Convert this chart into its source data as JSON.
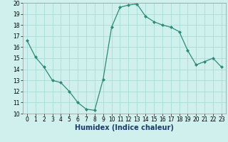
{
  "x": [
    0,
    1,
    2,
    3,
    4,
    5,
    6,
    7,
    8,
    9,
    10,
    11,
    12,
    13,
    14,
    15,
    16,
    17,
    18,
    19,
    20,
    21,
    22,
    23
  ],
  "y": [
    16.6,
    15.1,
    14.2,
    13.0,
    12.8,
    12.0,
    11.0,
    10.4,
    10.3,
    13.1,
    17.8,
    19.6,
    19.8,
    19.9,
    18.8,
    18.3,
    18.0,
    17.8,
    17.4,
    15.7,
    14.4,
    14.7,
    15.0,
    14.2
  ],
  "line_color": "#2e8b7a",
  "marker": "D",
  "marker_size": 2.0,
  "bg_color": "#cff0ec",
  "grid_color": "#a8ddd8",
  "xlabel": "Humidex (Indice chaleur)",
  "ylim": [
    10,
    20
  ],
  "xlim_min": -0.5,
  "xlim_max": 23.5,
  "yticks": [
    10,
    11,
    12,
    13,
    14,
    15,
    16,
    17,
    18,
    19,
    20
  ],
  "xticks": [
    0,
    1,
    2,
    3,
    4,
    5,
    6,
    7,
    8,
    9,
    10,
    11,
    12,
    13,
    14,
    15,
    16,
    17,
    18,
    19,
    20,
    21,
    22,
    23
  ],
  "tick_fontsize": 5.5,
  "xlabel_fontsize": 7.0,
  "xlabel_color": "#1a3a6e",
  "line_width": 0.9
}
